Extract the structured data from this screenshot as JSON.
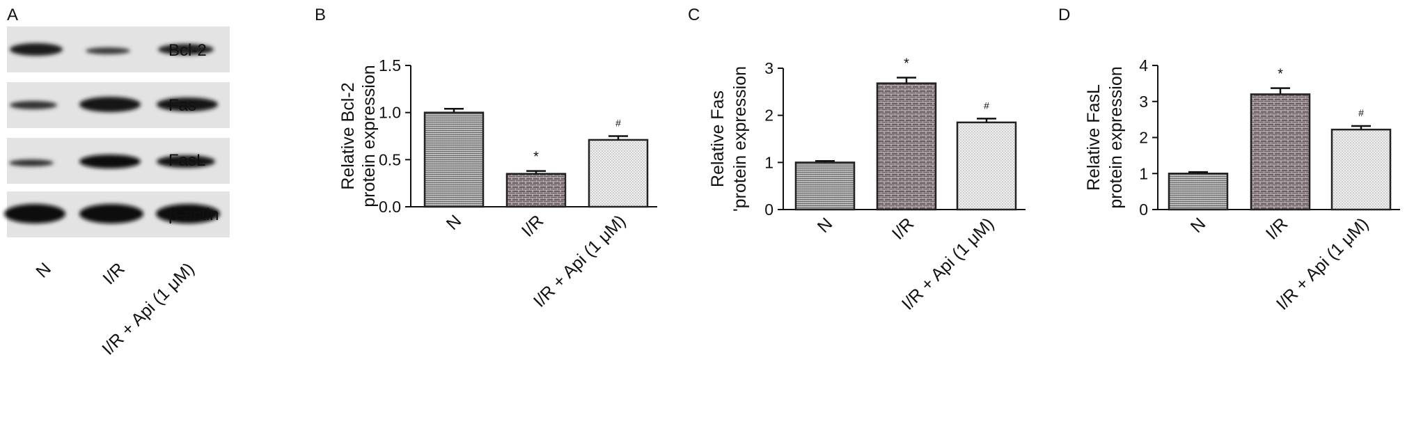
{
  "panels": {
    "a": "A",
    "b": "B",
    "c": "C",
    "d": "D"
  },
  "blot": {
    "bands": [
      "Bcl-2",
      "Fas",
      "FasL",
      "β-actin"
    ],
    "lanes": [
      "N",
      "I/R",
      "I/R + Api (1 μM)"
    ]
  },
  "chart_data": [
    {
      "type": "bar",
      "panel": "B",
      "categories": [
        "N",
        "I/R",
        "I/R + Api (1 μM)"
      ],
      "values": [
        1.0,
        0.35,
        0.71
      ],
      "errors": [
        0.04,
        0.03,
        0.04
      ],
      "annotations": [
        "",
        "*",
        "#"
      ],
      "ylabel": [
        "Relative Bcl-2",
        "protein expression"
      ],
      "ylim": [
        0,
        1.5
      ],
      "yticks": [
        "0.0",
        "0.5",
        "1.0",
        "1.5"
      ],
      "ytick_values": [
        0,
        0.5,
        1.0,
        1.5
      ]
    },
    {
      "type": "bar",
      "panel": "C",
      "categories": [
        "N",
        "I/R",
        "I/R + Api (1 μM)"
      ],
      "values": [
        1.0,
        2.68,
        1.85
      ],
      "errors": [
        0.03,
        0.12,
        0.08
      ],
      "annotations": [
        "",
        "*",
        "#"
      ],
      "ylabel": [
        "Relative Fas",
        "'protein expression"
      ],
      "ylim": [
        0,
        3
      ],
      "yticks": [
        "0",
        "1",
        "2",
        "3"
      ],
      "ytick_values": [
        0,
        1,
        2,
        3
      ]
    },
    {
      "type": "bar",
      "panel": "D",
      "categories": [
        "N",
        "I/R",
        "I/R + Api (1 μM)"
      ],
      "values": [
        1.0,
        3.2,
        2.22
      ],
      "errors": [
        0.04,
        0.17,
        0.1
      ],
      "annotations": [
        "",
        "*",
        "#"
      ],
      "ylabel": [
        "Relative FasL",
        "protein expression"
      ],
      "ylim": [
        0,
        4
      ],
      "yticks": [
        "0",
        "1",
        "2",
        "3",
        "4"
      ],
      "ytick_values": [
        0,
        1,
        2,
        3,
        4
      ]
    }
  ]
}
